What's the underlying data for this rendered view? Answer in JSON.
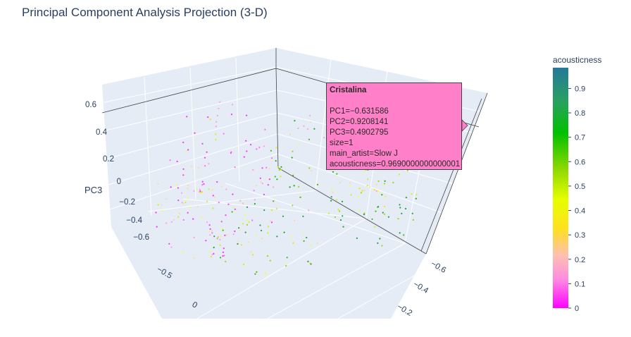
{
  "chart_data": {
    "type": "scatter",
    "title": "Principal Component Analysis Projection (3-D)",
    "axes": {
      "z": {
        "label": "PC3",
        "ticks": [
          "0.6",
          "0.4",
          "0.2",
          "0",
          "−0.2",
          "−0.4",
          "−0.6"
        ]
      },
      "x": {
        "ticks": [
          "−0.5",
          "0"
        ]
      },
      "y": {
        "ticks": [
          "−0.6",
          "−0.4",
          "−0.2"
        ]
      }
    },
    "color_axis": {
      "title": "acousticness",
      "range": [
        0,
        1
      ],
      "ticks": [
        "0",
        "0.1",
        "0.2",
        "0.3",
        "0.4",
        "0.5",
        "0.6",
        "0.7",
        "0.8",
        "0.9"
      ],
      "colors": [
        "#ff00ff",
        "#ff8ce0",
        "#ffc0b0",
        "#ffe020",
        "#e6ff00",
        "#8cd800",
        "#00c000",
        "#2aa060",
        "#25789a"
      ]
    },
    "hover": {
      "title": "Cristalina",
      "lines": [
        "PC1=−0.631586",
        "PC2=0.9208141",
        "PC3=0.4902795",
        "size=1",
        "main_artist=Slow J",
        "acousticness=0.9690000000000001"
      ]
    }
  }
}
